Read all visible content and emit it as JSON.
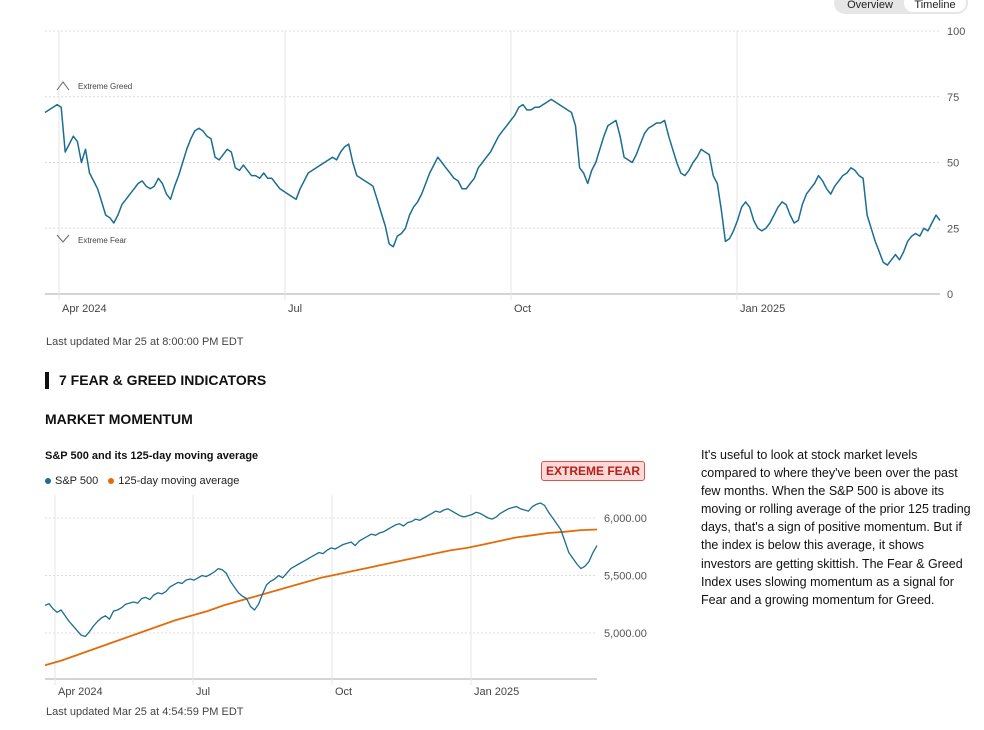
{
  "toggle": {
    "overview": "Overview",
    "timeline": "Timeline"
  },
  "fng_chart": {
    "last_updated": "Last updated Mar 25 at 8:00:00 PM EDT",
    "chart_data": {
      "type": "line",
      "x_labels": [
        "Apr 2024",
        "Jul",
        "Oct",
        "Jan 2025"
      ],
      "y_ticks": [
        0,
        25,
        50,
        75,
        100
      ],
      "ylim": [
        0,
        100
      ],
      "annotations": {
        "top": "Extreme Greed",
        "bottom": "Extreme Fear"
      },
      "series": [
        {
          "color": "#1b6d92",
          "values": [
            69,
            70,
            71,
            72,
            71,
            54,
            57,
            60,
            58,
            50,
            55,
            46,
            43,
            40,
            35,
            30,
            29,
            27,
            30,
            34,
            36,
            38,
            40,
            42,
            43,
            41,
            40,
            41,
            44,
            42,
            38,
            36,
            41,
            45,
            50,
            55,
            59,
            62,
            63,
            62,
            60,
            59,
            52,
            51,
            53,
            55,
            54,
            48,
            47,
            49,
            47,
            45,
            45,
            44,
            46,
            44,
            44,
            42,
            40,
            39,
            38,
            37,
            36,
            40,
            43,
            46,
            47,
            48,
            49,
            50,
            51,
            52,
            51,
            54,
            56,
            57,
            50,
            45,
            44,
            43,
            42,
            41,
            36,
            31,
            26,
            19,
            18,
            22,
            23,
            25,
            30,
            33,
            35,
            38,
            42,
            46,
            49,
            52,
            50,
            48,
            46,
            44,
            43,
            40,
            40,
            42,
            44,
            48,
            50,
            52,
            54,
            57,
            60,
            62,
            64,
            66,
            68,
            71,
            72,
            70,
            70,
            71,
            71,
            72,
            73,
            74,
            73,
            72,
            71,
            70,
            69,
            64,
            48,
            46,
            42,
            47,
            50,
            55,
            60,
            64,
            65,
            66,
            60,
            52,
            51,
            50,
            53,
            57,
            61,
            63,
            64,
            65,
            65,
            66,
            60,
            55,
            50,
            46,
            45,
            47,
            50,
            52,
            55,
            54,
            53,
            45,
            42,
            32,
            20,
            21,
            24,
            28,
            33,
            35,
            33,
            28,
            25,
            24,
            25,
            27,
            30,
            33,
            35,
            34,
            30,
            27,
            28,
            34,
            38,
            40,
            42,
            45,
            43,
            40,
            38,
            41,
            43,
            45,
            46,
            48,
            47,
            45,
            44,
            30,
            25,
            20,
            16,
            12,
            11,
            13,
            15,
            13,
            16,
            20,
            22,
            23,
            22,
            25,
            24,
            27,
            30,
            28
          ]
        }
      ]
    }
  },
  "section": {
    "title": "7 FEAR & GREED INDICATORS",
    "subsection": "MARKET MOMENTUM",
    "chart_title": "S&P 500 and its 125-day moving average",
    "rating": "EXTREME FEAR",
    "description": "It's useful to look at stock market levels compared to where they've been over the past few months. When the S&P 500 is above its moving or rolling average of the prior 125 trading days, that's a sign of positive momentum. But if the index is below this average, it shows investors are getting skittish. The Fear & Greed Index uses slowing momentum as a signal for Fear and a growing momentum for Greed.",
    "last_updated": "Last updated Mar 25 at 4:54:59 PM EDT"
  },
  "momentum_chart": {
    "chart_data": {
      "type": "line",
      "x_labels": [
        "Apr 2024",
        "Jul",
        "Oct",
        "Jan 2025"
      ],
      "y_ticks": [
        5000,
        5500,
        6000
      ],
      "y_tick_labels": [
        "5,000.00",
        "5,500.00",
        "6,000.00"
      ],
      "ylim": [
        4600,
        6200
      ],
      "series": [
        {
          "name": "S&P 500",
          "color": "#1b6d92",
          "values": [
            5240,
            5255,
            5210,
            5180,
            5200,
            5150,
            5100,
            5060,
            5020,
            4980,
            4970,
            5010,
            5060,
            5100,
            5130,
            5150,
            5120,
            5190,
            5200,
            5220,
            5250,
            5260,
            5270,
            5260,
            5300,
            5310,
            5290,
            5330,
            5350,
            5340,
            5360,
            5400,
            5420,
            5440,
            5430,
            5460,
            5470,
            5460,
            5480,
            5500,
            5490,
            5510,
            5530,
            5560,
            5550,
            5520,
            5450,
            5400,
            5350,
            5320,
            5300,
            5230,
            5200,
            5250,
            5340,
            5420,
            5450,
            5470,
            5500,
            5480,
            5520,
            5560,
            5580,
            5600,
            5620,
            5640,
            5660,
            5680,
            5700,
            5690,
            5720,
            5740,
            5730,
            5750,
            5770,
            5780,
            5790,
            5760,
            5800,
            5820,
            5840,
            5860,
            5850,
            5870,
            5880,
            5900,
            5920,
            5940,
            5950,
            5930,
            5960,
            5970,
            5990,
            5980,
            6000,
            6020,
            6040,
            6060,
            6050,
            6070,
            6080,
            6060,
            6040,
            6020,
            6010,
            6020,
            6030,
            6050,
            6040,
            6020,
            6000,
            5990,
            6010,
            6040,
            6060,
            6080,
            6090,
            6100,
            6080,
            6070,
            6060,
            6100,
            6120,
            6130,
            6110,
            6050,
            6000,
            5950,
            5900,
            5800,
            5700,
            5650,
            5600,
            5560,
            5580,
            5620,
            5700,
            5760
          ]
        },
        {
          "name": "125-day moving average",
          "color": "#e36c0a",
          "values": [
            4720,
            4760,
            4810,
            4860,
            4910,
            4960,
            5010,
            5060,
            5110,
            5150,
            5190,
            5240,
            5280,
            5320,
            5360,
            5400,
            5440,
            5480,
            5510,
            5540,
            5570,
            5600,
            5630,
            5660,
            5690,
            5720,
            5740,
            5770,
            5800,
            5830,
            5850,
            5870,
            5880,
            5895,
            5900
          ]
        }
      ]
    }
  }
}
